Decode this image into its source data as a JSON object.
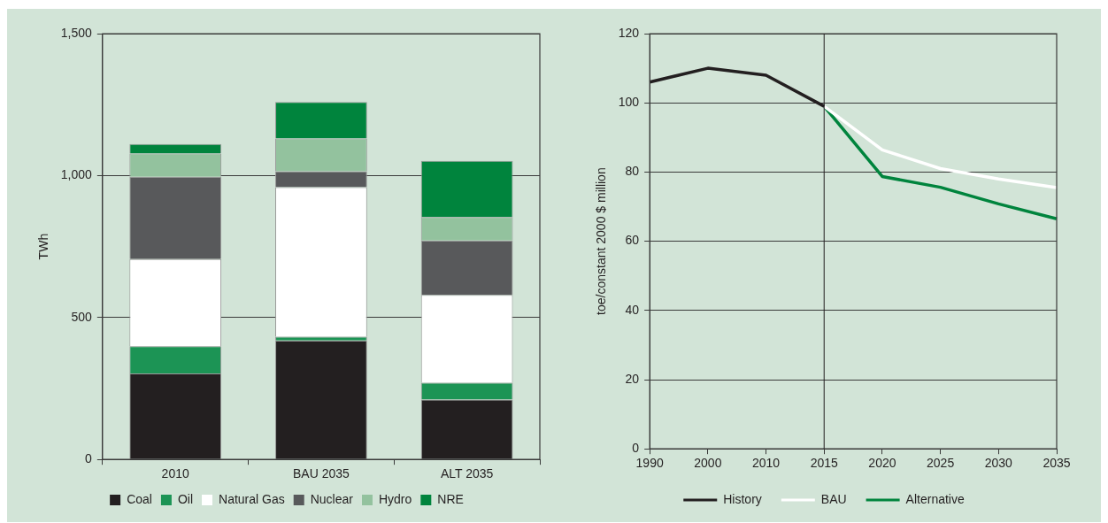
{
  "chart_data": [
    {
      "type": "bar",
      "stacked": true,
      "ylabel": "TWh",
      "categories": [
        "2010",
        "BAU 2035",
        "ALT 2035"
      ],
      "ylim": [
        0,
        1500
      ],
      "yticks": [
        0,
        {
          "value": 500,
          "label": "500"
        },
        {
          "value": 1000,
          "label": "1,000"
        },
        {
          "value": 1500,
          "label": "1,500"
        }
      ],
      "grid": "y",
      "legend": "bottom",
      "series": [
        {
          "name": "Coal",
          "color": "#231f20",
          "values": [
            303,
            419,
            211
          ]
        },
        {
          "name": "Oil",
          "color": "#1c9455",
          "values": [
            96,
            13,
            59
          ]
        },
        {
          "name": "Natural Gas",
          "color": "#ffffff",
          "values": [
            307,
            527,
            310
          ]
        },
        {
          "name": "Nuclear",
          "color": "#58595b",
          "values": [
            290,
            56,
            191
          ]
        },
        {
          "name": "Hydro",
          "color": "#93c29e",
          "values": [
            82,
            116,
            83
          ]
        },
        {
          "name": "NRE",
          "color": "#00843d",
          "values": [
            33,
            128,
            198
          ]
        }
      ]
    },
    {
      "type": "line",
      "ylabel": "toe/constant 2000 $ million",
      "categories": [
        "1990",
        "2000",
        "2010",
        "2015",
        "2020",
        "2025",
        "2030",
        "2035"
      ],
      "ylim": [
        0,
        120
      ],
      "yticks": [
        0,
        20,
        40,
        60,
        80,
        100,
        120
      ],
      "grid": "y",
      "legend": "bottom",
      "marker": "none",
      "ref_lines": [
        {
          "axis": "x",
          "value": "2015",
          "color": "#231f20"
        }
      ],
      "series": [
        {
          "name": "History",
          "color": "#231f20",
          "values": [
            106,
            110,
            108,
            99,
            null,
            null,
            null,
            null
          ]
        },
        {
          "name": "BAU",
          "color": "#ffffff",
          "values": [
            null,
            null,
            null,
            99,
            86.4,
            81,
            78,
            75.5
          ]
        },
        {
          "name": "Alternative",
          "color": "#00843d",
          "values": [
            null,
            null,
            null,
            99,
            78.7,
            75.6,
            70.8,
            66.5
          ]
        }
      ]
    }
  ]
}
